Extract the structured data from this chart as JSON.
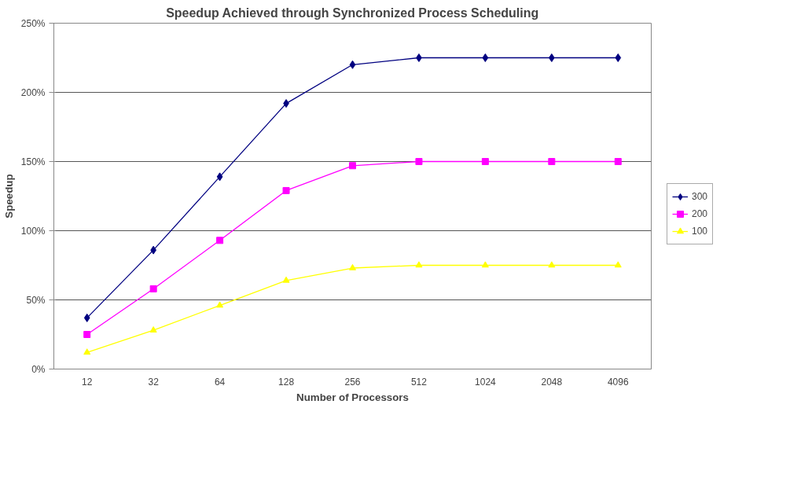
{
  "chart_data": {
    "type": "line",
    "title": "Speedup Achieved through Synchronized Process Scheduling",
    "xlabel": "Number of Processors",
    "ylabel": "Speedup",
    "categories": [
      "12",
      "32",
      "64",
      "128",
      "256",
      "512",
      "1024",
      "2048",
      "4096"
    ],
    "series": [
      {
        "name": "300",
        "color": "#000080",
        "marker": "diamond",
        "values": [
          37,
          86,
          139,
          192,
          220,
          225,
          225,
          225,
          225
        ]
      },
      {
        "name": "200",
        "color": "#ff00ff",
        "marker": "square",
        "values": [
          25,
          58,
          93,
          129,
          147,
          150,
          150,
          150,
          150
        ]
      },
      {
        "name": "100",
        "color": "#ffff00",
        "marker": "triangle",
        "values": [
          12,
          28,
          46,
          64,
          73,
          75,
          75,
          75,
          75
        ]
      }
    ],
    "ylim": [
      0,
      250
    ],
    "yticks": [
      {
        "value": 0,
        "label": "0%"
      },
      {
        "value": 50,
        "label": "50%"
      },
      {
        "value": 100,
        "label": "100%"
      },
      {
        "value": 150,
        "label": "150%"
      },
      {
        "value": 200,
        "label": "200%"
      },
      {
        "value": 250,
        "label": "250%"
      }
    ],
    "grid": "y",
    "legend": "right",
    "line_style": "solid"
  }
}
